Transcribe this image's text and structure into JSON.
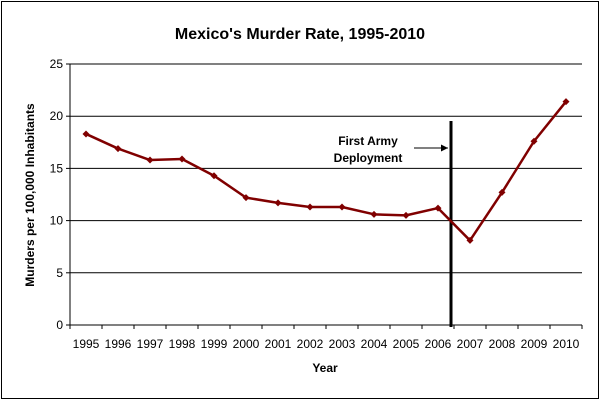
{
  "chart_data": {
    "type": "line",
    "title": "Mexico's Murder Rate, 1995-2010",
    "xlabel": "Year",
    "ylabel": "Murders per 100,000 Inhabitants",
    "categories": [
      "1995",
      "1996",
      "1997",
      "1998",
      "1999",
      "2000",
      "2001",
      "2002",
      "2003",
      "2004",
      "2005",
      "2006",
      "2007",
      "2008",
      "2009",
      "2010"
    ],
    "series": [
      {
        "values": [
          18.3,
          16.9,
          15.8,
          15.9,
          14.3,
          12.2,
          11.7,
          11.3,
          11.3,
          10.6,
          10.5,
          11.2,
          8.1,
          12.7,
          17.6,
          21.4
        ],
        "color": "#800000"
      }
    ],
    "ylim": [
      0,
      25
    ],
    "yticks": [
      0,
      5,
      10,
      15,
      20,
      25
    ],
    "grid": "horizontal",
    "legend": "none",
    "annotation": {
      "text_lines": [
        "First Army",
        "Deployment"
      ],
      "at_year": "2006/2007 boundary",
      "line_color": "#000000"
    }
  }
}
